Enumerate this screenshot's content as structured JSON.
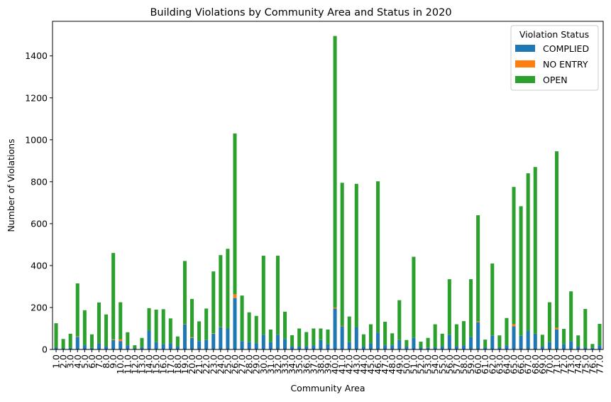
{
  "chart_data": {
    "type": "bar",
    "stacked": true,
    "title": "Building Violations by Community Area and Status in 2020",
    "xlabel": "Community Area",
    "ylabel": "Number of Violations",
    "ylim": [
      0,
      1565
    ],
    "yticks": [
      0,
      200,
      400,
      600,
      800,
      1000,
      1200,
      1400
    ],
    "grid": false,
    "legend_title": "Violation Status",
    "legend_position": "top-right",
    "categories": [
      "1.0",
      "2.0",
      "3.0",
      "4.0",
      "5.0",
      "6.0",
      "7.0",
      "8.0",
      "9.0",
      "10.0",
      "11.0",
      "12.0",
      "13.0",
      "14.0",
      "15.0",
      "16.0",
      "17.0",
      "18.0",
      "19.0",
      "20.0",
      "21.0",
      "22.0",
      "23.0",
      "24.0",
      "25.0",
      "26.0",
      "27.0",
      "28.0",
      "29.0",
      "30.0",
      "31.0",
      "32.0",
      "33.0",
      "34.0",
      "35.0",
      "36.0",
      "37.0",
      "38.0",
      "39.0",
      "40.0",
      "41.0",
      "42.0",
      "43.0",
      "44.0",
      "45.0",
      "46.0",
      "47.0",
      "48.0",
      "49.0",
      "50.0",
      "51.0",
      "52.0",
      "53.0",
      "54.0",
      "55.0",
      "56.0",
      "57.0",
      "58.0",
      "59.0",
      "60.0",
      "61.0",
      "62.0",
      "63.0",
      "64.0",
      "65.0",
      "66.0",
      "67.0",
      "68.0",
      "69.0",
      "70.0",
      "71.0",
      "72.0",
      "73.0",
      "74.0",
      "75.0",
      "76.0",
      "77.0"
    ],
    "series": [
      {
        "name": "COMPLIED",
        "color": "#1f77b4",
        "values": [
          10,
          5,
          8,
          60,
          20,
          8,
          30,
          15,
          45,
          40,
          20,
          5,
          10,
          90,
          35,
          25,
          30,
          15,
          120,
          55,
          40,
          45,
          75,
          105,
          100,
          245,
          40,
          35,
          30,
          70,
          35,
          70,
          50,
          15,
          15,
          15,
          20,
          45,
          25,
          195,
          110,
          35,
          105,
          15,
          30,
          80,
          20,
          20,
          45,
          15,
          55,
          10,
          8,
          10,
          15,
          70,
          15,
          20,
          60,
          130,
          10,
          65,
          10,
          20,
          110,
          65,
          90,
          75,
          15,
          35,
          95,
          25,
          40,
          15,
          10,
          8,
          20
        ]
      },
      {
        "name": "NO ENTRY",
        "color": "#ff7f0e",
        "values": [
          0,
          0,
          0,
          2,
          0,
          0,
          0,
          0,
          3,
          8,
          0,
          0,
          0,
          0,
          0,
          0,
          0,
          0,
          2,
          3,
          0,
          0,
          2,
          2,
          0,
          18,
          0,
          0,
          0,
          0,
          0,
          0,
          0,
          0,
          0,
          0,
          0,
          0,
          0,
          5,
          2,
          0,
          0,
          0,
          0,
          0,
          0,
          0,
          0,
          0,
          0,
          0,
          0,
          0,
          0,
          0,
          0,
          0,
          0,
          4,
          0,
          0,
          0,
          0,
          10,
          0,
          0,
          0,
          0,
          0,
          8,
          0,
          0,
          0,
          0,
          0,
          0
        ]
      },
      {
        "name": "OPEN",
        "color": "#2ca02c",
        "values": [
          115,
          45,
          67,
          253,
          167,
          64,
          194,
          152,
          412,
          177,
          62,
          15,
          45,
          107,
          155,
          167,
          118,
          47,
          300,
          183,
          94,
          150,
          295,
          343,
          380,
          767,
          217,
          142,
          130,
          377,
          60,
          377,
          130,
          53,
          85,
          68,
          80,
          55,
          70,
          1295,
          683,
          122,
          685,
          57,
          90,
          722,
          112,
          57,
          190,
          30,
          387,
          27,
          47,
          110,
          60,
          265,
          105,
          115,
          275,
          506,
          37,
          345,
          57,
          130,
          655,
          618,
          750,
          795,
          55,
          190,
          842,
          73,
          237,
          52,
          183,
          18,
          102
        ]
      }
    ]
  }
}
